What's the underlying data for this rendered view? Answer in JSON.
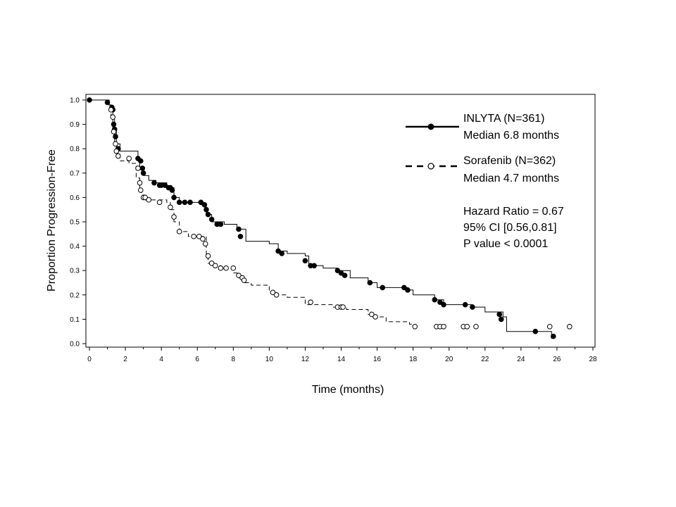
{
  "chart_data": {
    "type": "line",
    "xlabel": "Time (months)",
    "ylabel": "Proportion Progression-Free",
    "xlim": [
      0,
      28
    ],
    "ylim": [
      0,
      1.0
    ],
    "x_ticks": [
      "0",
      "2",
      "4",
      "6",
      "8",
      "10",
      "12",
      "14",
      "16",
      "18",
      "20",
      "22",
      "24",
      "26",
      "28"
    ],
    "y_ticks": [
      "0.0",
      "0.1",
      "0.2",
      "0.3",
      "0.4",
      "0.5",
      "0.6",
      "0.7",
      "0.8",
      "0.9",
      "1.0"
    ],
    "grid": false,
    "legend_position": "top-right",
    "series": [
      {
        "name": "INLYTA (N=361)",
        "median_label": "Median 6.8 months",
        "line_style": "solid",
        "marker": "filled-circle",
        "color": "#000000",
        "x": [
          0,
          1.1,
          1.2,
          1.3,
          1.4,
          1.5,
          1.7,
          2.7,
          2.8,
          3.0,
          3.3,
          3.7,
          4.3,
          4.7,
          5.0,
          5.5,
          6.2,
          6.5,
          6.8,
          7.5,
          8.2,
          8.7,
          10.0,
          10.5,
          11.0,
          12.0,
          12.2,
          13.0,
          13.8,
          14.5,
          15.5,
          16.0,
          17.0,
          17.7,
          18.0,
          19.2,
          19.7,
          21.0,
          21.3,
          22.0,
          22.8,
          23.0,
          23.2,
          24.8,
          25.7
        ],
        "y": [
          1.0,
          0.98,
          0.96,
          0.93,
          0.88,
          0.82,
          0.79,
          0.76,
          0.72,
          0.69,
          0.67,
          0.66,
          0.64,
          0.6,
          0.58,
          0.58,
          0.57,
          0.53,
          0.5,
          0.49,
          0.47,
          0.42,
          0.41,
          0.38,
          0.37,
          0.36,
          0.32,
          0.31,
          0.3,
          0.27,
          0.25,
          0.23,
          0.23,
          0.22,
          0.2,
          0.18,
          0.16,
          0.16,
          0.15,
          0.13,
          0.13,
          0.11,
          0.05,
          0.05,
          0.02
        ],
        "censored_x": [
          0,
          1.0,
          1.25,
          1.3,
          1.35,
          1.4,
          1.45,
          1.6,
          2.7,
          2.85,
          2.95,
          3.0,
          3.6,
          3.9,
          4.0,
          4.2,
          4.4,
          4.5,
          4.6,
          4.7,
          5.0,
          5.3,
          5.6,
          6.2,
          6.4,
          6.5,
          6.6,
          6.8,
          7.1,
          7.3,
          8.3,
          8.4,
          10.5,
          10.7,
          12.0,
          12.3,
          12.5,
          13.8,
          14.0,
          14.2,
          15.6,
          16.3,
          17.5,
          17.7,
          19.2,
          19.5,
          19.7,
          20.9,
          21.3,
          22.8,
          22.9,
          24.8,
          25.8
        ],
        "censored_y": [
          1.0,
          0.99,
          0.97,
          0.96,
          0.9,
          0.88,
          0.85,
          0.8,
          0.76,
          0.75,
          0.72,
          0.7,
          0.66,
          0.65,
          0.65,
          0.65,
          0.64,
          0.64,
          0.63,
          0.6,
          0.58,
          0.58,
          0.58,
          0.58,
          0.57,
          0.55,
          0.53,
          0.51,
          0.49,
          0.49,
          0.47,
          0.44,
          0.38,
          0.37,
          0.34,
          0.32,
          0.32,
          0.3,
          0.29,
          0.28,
          0.25,
          0.23,
          0.23,
          0.22,
          0.18,
          0.17,
          0.16,
          0.16,
          0.15,
          0.12,
          0.1,
          0.05,
          0.03
        ]
      },
      {
        "name": "Sorafenib (N=362)",
        "median_label": "Median 4.7 months",
        "line_style": "dashed",
        "marker": "open-circle",
        "color": "#000000",
        "x": [
          0,
          1.1,
          1.2,
          1.3,
          1.4,
          1.5,
          1.7,
          2.2,
          2.6,
          2.8,
          2.9,
          3.1,
          4.3,
          4.5,
          4.7,
          5.0,
          5.5,
          6.5,
          6.6,
          6.8,
          7.3,
          8.0,
          8.3,
          8.6,
          9.0,
          10.0,
          10.3,
          11.0,
          12.0,
          13.5,
          14.3,
          15.5,
          15.8,
          16.5,
          17.8,
          18.0
        ],
        "y": [
          1.0,
          0.97,
          0.93,
          0.88,
          0.83,
          0.78,
          0.75,
          0.74,
          0.68,
          0.64,
          0.61,
          0.59,
          0.58,
          0.55,
          0.5,
          0.46,
          0.44,
          0.36,
          0.33,
          0.32,
          0.31,
          0.29,
          0.27,
          0.25,
          0.24,
          0.21,
          0.2,
          0.19,
          0.16,
          0.15,
          0.14,
          0.12,
          0.11,
          0.09,
          0.08,
          0.07
        ],
        "censored_x": [
          1.2,
          1.3,
          1.35,
          1.45,
          1.5,
          1.6,
          2.2,
          2.7,
          2.8,
          2.85,
          3.0,
          3.1,
          3.3,
          3.9,
          4.5,
          4.7,
          5.0,
          5.8,
          6.1,
          6.3,
          6.45,
          6.6,
          6.8,
          7.0,
          7.3,
          7.6,
          8.0,
          8.3,
          8.5,
          8.6,
          10.2,
          10.4,
          12.3,
          13.8,
          14.0,
          14.1,
          15.7,
          15.9,
          18.1,
          19.3,
          19.5,
          19.7,
          20.8,
          21.0,
          21.5,
          25.6,
          26.7
        ],
        "censored_y": [
          0.96,
          0.93,
          0.87,
          0.82,
          0.79,
          0.77,
          0.76,
          0.72,
          0.66,
          0.63,
          0.6,
          0.6,
          0.59,
          0.58,
          0.56,
          0.52,
          0.46,
          0.44,
          0.44,
          0.43,
          0.41,
          0.36,
          0.33,
          0.32,
          0.31,
          0.31,
          0.31,
          0.28,
          0.27,
          0.26,
          0.21,
          0.2,
          0.17,
          0.15,
          0.15,
          0.15,
          0.12,
          0.11,
          0.07,
          0.07,
          0.07,
          0.07,
          0.07,
          0.07,
          0.07,
          0.07,
          0.07
        ]
      }
    ],
    "annotations": [
      "Hazard Ratio = 0.67",
      "95% CI [0.56,0.81]",
      "P value < 0.0001"
    ]
  }
}
